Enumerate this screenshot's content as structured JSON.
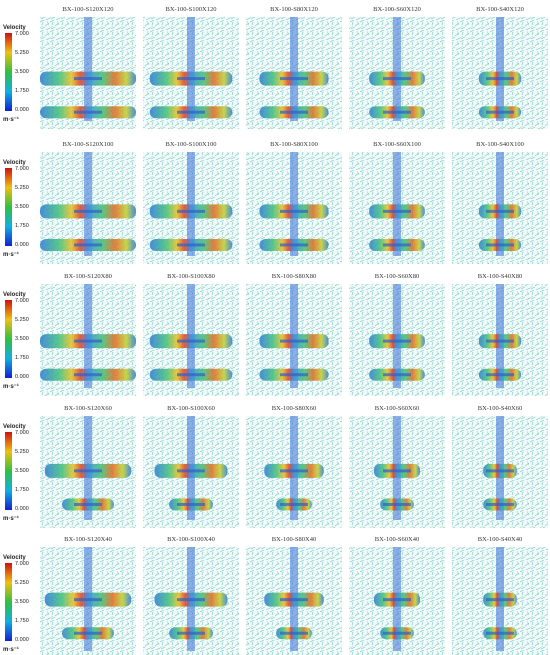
{
  "rows": [
    {
      "legend": {
        "title": "Velocity",
        "ticks": [
          "7.000",
          "5.250",
          "3.500",
          "1.750",
          "0.000"
        ],
        "unit": "m·s⁻¹"
      },
      "panels": [
        "BX-100-S120X120",
        "BX-100-S100X120",
        "BX-100-S80X120",
        "BX-100-S60X120",
        "BX-100-S40X120"
      ]
    },
    {
      "legend": {
        "title": "Velocity",
        "ticks": [
          "7.000",
          "5.250",
          "3.500",
          "1.750",
          "0.000"
        ],
        "unit": "m·s⁻¹"
      },
      "panels": [
        "BX-100-S120X100",
        "BX-100-S100X100",
        "BX-100-S80X100",
        "BX-100-S60X100",
        "BX-100-S40X100"
      ]
    },
    {
      "legend": {
        "title": "Velocity",
        "ticks": [
          "7.000",
          "5.250",
          "3.500",
          "1.750",
          "0.000"
        ],
        "unit": "m·s⁻¹"
      },
      "panels": [
        "BX-100-S120X80",
        "BX-100-S100X80",
        "BX-100-S80X80",
        "BX-100-S60X80",
        "BX-100-S40X80"
      ]
    },
    {
      "legend": {
        "title": "Velocity",
        "ticks": [
          "7.000",
          "5.250",
          "3.500",
          "1.750",
          "0.000"
        ],
        "unit": "m·s⁻¹"
      },
      "panels": [
        "BX-100-S120X60",
        "BX-100-S100X60",
        "BX-100-S80X60",
        "BX-100-S60X60",
        "BX-100-S40X60"
      ]
    },
    {
      "legend": {
        "title": "Velocity",
        "ticks": [
          "7.000",
          "5.250",
          "3.500",
          "1.750",
          "0.000"
        ],
        "unit": "m·s⁻¹"
      },
      "panels": [
        "BX-100-S120X40",
        "BX-100-S100X40",
        "BX-100-S80X40",
        "BX-100-S60X40",
        "BX-100-S40X40"
      ]
    }
  ]
}
